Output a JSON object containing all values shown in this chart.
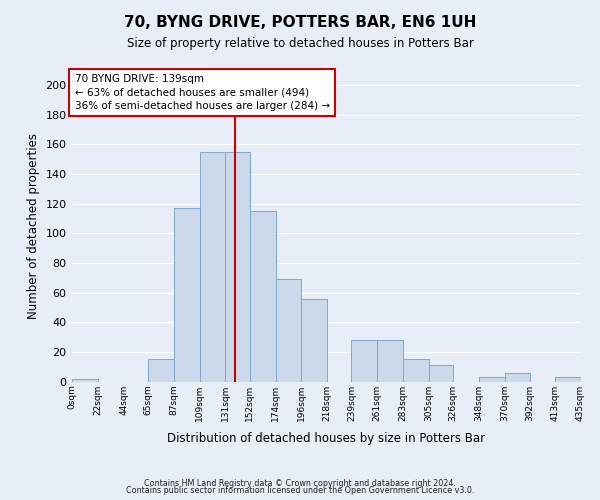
{
  "title": "70, BYNG DRIVE, POTTERS BAR, EN6 1UH",
  "subtitle": "Size of property relative to detached houses in Potters Bar",
  "xlabel": "Distribution of detached houses by size in Potters Bar",
  "ylabel": "Number of detached properties",
  "bar_color": "#ccd9ea",
  "bar_edge_color": "#7da8cc",
  "background_color": "#e8eef7",
  "grid_color": "#ffffff",
  "vline_x": 139,
  "vline_color": "#cc0000",
  "annotation_title": "70 BYNG DRIVE: 139sqm",
  "annotation_line1": "← 63% of detached houses are smaller (494)",
  "annotation_line2": "36% of semi-detached houses are larger (284) →",
  "annotation_box_color": "#cc0000",
  "bin_edges": [
    0,
    22,
    44,
    65,
    87,
    109,
    131,
    152,
    174,
    196,
    218,
    239,
    261,
    283,
    305,
    326,
    348,
    370,
    392,
    413,
    435
  ],
  "bin_heights": [
    2,
    0,
    0,
    15,
    117,
    155,
    155,
    115,
    69,
    56,
    0,
    28,
    28,
    15,
    11,
    0,
    3,
    6,
    0,
    3
  ],
  "ylim": [
    0,
    210
  ],
  "yticks": [
    0,
    20,
    40,
    60,
    80,
    100,
    120,
    140,
    160,
    180,
    200
  ],
  "xtick_labels": [
    "0sqm",
    "22sqm",
    "44sqm",
    "65sqm",
    "87sqm",
    "109sqm",
    "131sqm",
    "152sqm",
    "174sqm",
    "196sqm",
    "218sqm",
    "239sqm",
    "261sqm",
    "283sqm",
    "305sqm",
    "326sqm",
    "348sqm",
    "370sqm",
    "392sqm",
    "413sqm",
    "435sqm"
  ],
  "footer1": "Contains HM Land Registry data © Crown copyright and database right 2024.",
  "footer2": "Contains public sector information licensed under the Open Government Licence v3.0."
}
